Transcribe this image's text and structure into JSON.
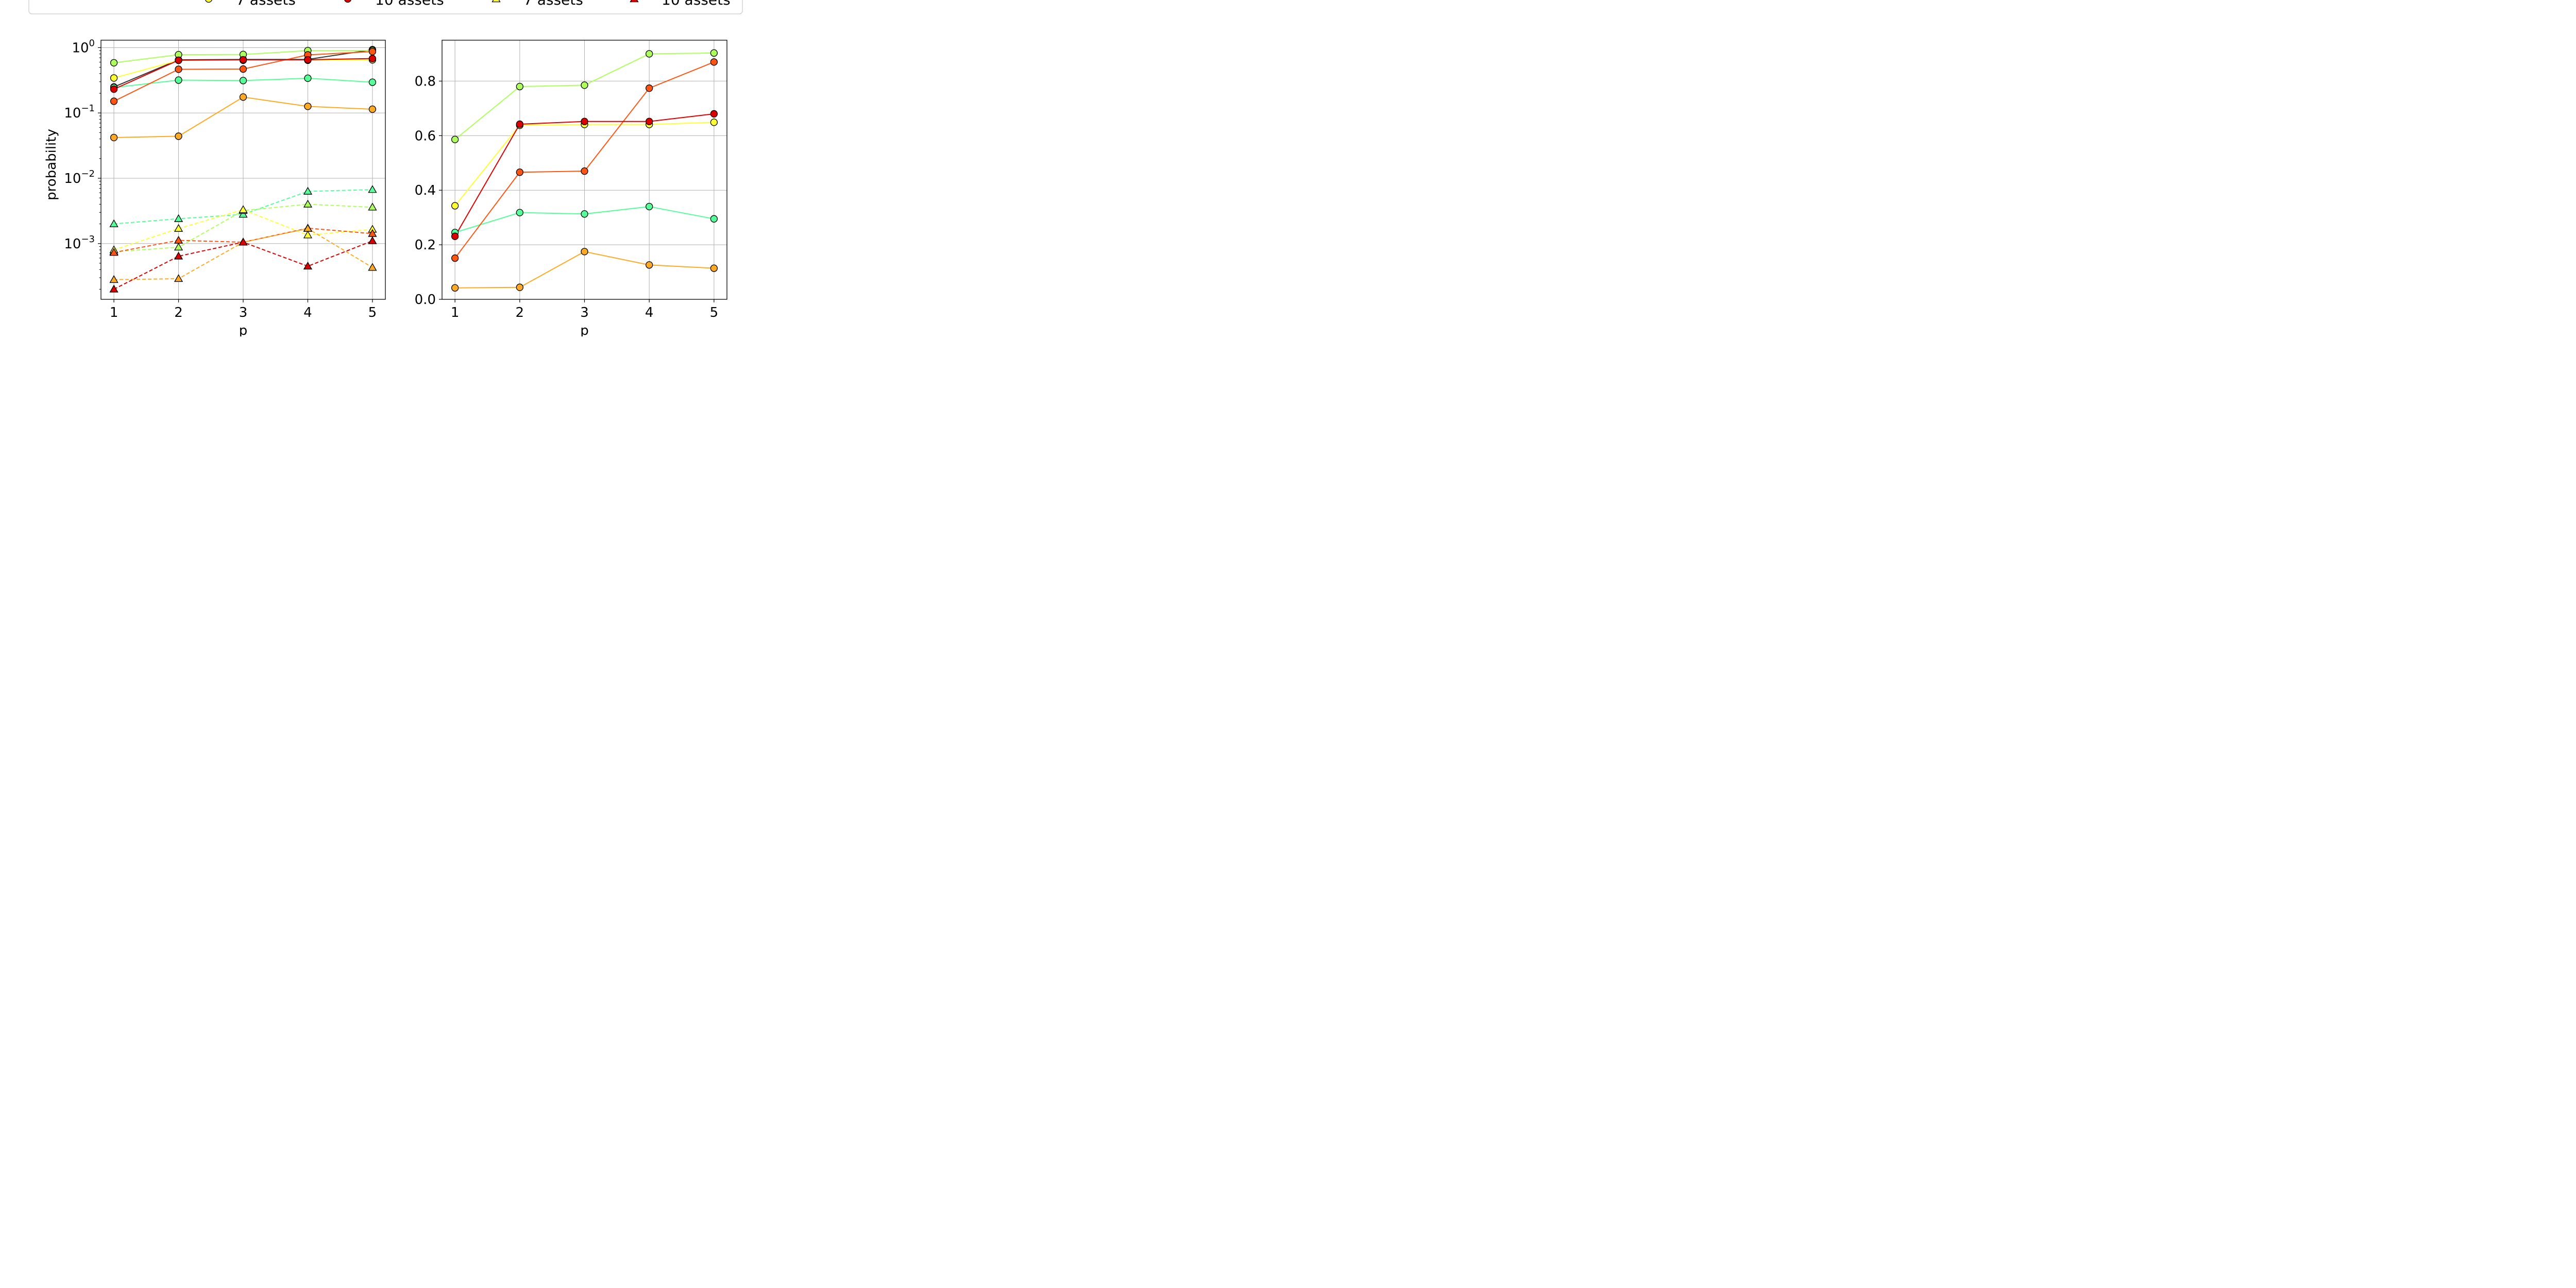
{
  "legend": {
    "items": [
      {
        "label": "7 assets",
        "color": "#ffff33",
        "marker": "circle",
        "dash": false
      },
      {
        "label": "10 assets",
        "color": "#dd0000",
        "marker": "circle",
        "dash": false
      },
      {
        "label": "7 assets",
        "color": "#ffff33",
        "marker": "triangle",
        "dash": true
      },
      {
        "label": "10 assets",
        "color": "#dd0000",
        "marker": "triangle",
        "dash": true
      }
    ]
  },
  "chart_data": [
    {
      "type": "line",
      "yscale": "log",
      "xlabel": "p",
      "ylabel": "probability",
      "x": [
        1,
        2,
        3,
        4,
        5
      ],
      "xlim": [
        0.8,
        5.2
      ],
      "ylim": [
        0.00014,
        1.3
      ],
      "x_ticks": [
        "1",
        "2",
        "3",
        "4",
        "5"
      ],
      "y_ticks": [
        {
          "value": 1,
          "base": "10",
          "exp": "0"
        },
        {
          "value": 0.1,
          "base": "10",
          "exp": "−1"
        },
        {
          "value": 0.01,
          "base": "10",
          "exp": "−2"
        },
        {
          "value": 0.001,
          "base": "10",
          "exp": "−3"
        }
      ],
      "grid": true,
      "series": [
        {
          "color": "#333333",
          "marker": "circle",
          "dash": false,
          "values": [
            0.25,
            0.65,
            0.66,
            0.66,
            0.93
          ]
        },
        {
          "color": "#adff5c",
          "marker": "circle",
          "dash": false,
          "values": [
            0.586,
            0.78,
            0.785,
            0.9,
            0.903
          ]
        },
        {
          "color": "#ffff33",
          "marker": "circle",
          "dash": false,
          "values": [
            0.343,
            0.638,
            0.641,
            0.641,
            0.649
          ]
        },
        {
          "color": "#55ff99",
          "marker": "circle",
          "dash": false,
          "values": [
            0.245,
            0.318,
            0.313,
            0.34,
            0.295
          ]
        },
        {
          "color": "#ff5511",
          "marker": "circle",
          "dash": false,
          "values": [
            0.151,
            0.466,
            0.47,
            0.774,
            0.87
          ]
        },
        {
          "color": "#dd0000",
          "marker": "circle",
          "dash": false,
          "values": [
            0.231,
            0.642,
            0.652,
            0.652,
            0.68
          ]
        },
        {
          "color": "#ffaa22",
          "marker": "circle",
          "dash": false,
          "values": [
            0.042,
            0.044,
            0.175,
            0.126,
            0.114
          ]
        },
        {
          "color": "#55ff99",
          "marker": "triangle",
          "dash": true,
          "values": [
            0.002,
            0.0024,
            0.0028,
            0.0063,
            0.0067
          ]
        },
        {
          "color": "#adff5c",
          "marker": "triangle",
          "dash": true,
          "values": [
            0.00075,
            0.00088,
            0.0032,
            0.004,
            0.0036
          ]
        },
        {
          "color": "#ffff33",
          "marker": "triangle",
          "dash": true,
          "values": [
            0.0008,
            0.0017,
            0.0033,
            0.00135,
            0.00165
          ]
        },
        {
          "color": "#ff5511",
          "marker": "triangle",
          "dash": true,
          "values": [
            0.00073,
            0.00112,
            0.00105,
            0.00172,
            0.00142
          ]
        },
        {
          "color": "#ffaa22",
          "marker": "triangle",
          "dash": true,
          "values": [
            0.00028,
            0.00029,
            0.00105,
            0.0017,
            0.00043
          ]
        },
        {
          "color": "#dd0000",
          "marker": "triangle",
          "dash": true,
          "values": [
            0.0002,
            0.00064,
            0.00105,
            0.00045,
            0.0011
          ]
        }
      ]
    },
    {
      "type": "line",
      "yscale": "linear",
      "xlabel": "p",
      "ylabel": "",
      "x": [
        1,
        2,
        3,
        4,
        5
      ],
      "xlim": [
        0.8,
        5.2
      ],
      "ylim": [
        0,
        0.95
      ],
      "x_ticks": [
        "1",
        "2",
        "3",
        "4",
        "5"
      ],
      "y_ticks": [
        {
          "value": 0,
          "label": "0.0"
        },
        {
          "value": 0.2,
          "label": "0.2"
        },
        {
          "value": 0.4,
          "label": "0.4"
        },
        {
          "value": 0.6,
          "label": "0.6"
        },
        {
          "value": 0.8,
          "label": "0.8"
        }
      ],
      "grid": true,
      "series": [
        {
          "color": "#adff5c",
          "marker": "circle",
          "dash": false,
          "values": [
            0.586,
            0.78,
            0.785,
            0.9,
            0.903
          ]
        },
        {
          "color": "#ffff33",
          "marker": "circle",
          "dash": false,
          "values": [
            0.343,
            0.638,
            0.641,
            0.641,
            0.649
          ]
        },
        {
          "color": "#55ff99",
          "marker": "circle",
          "dash": false,
          "values": [
            0.245,
            0.318,
            0.313,
            0.34,
            0.295
          ]
        },
        {
          "color": "#ff5511",
          "marker": "circle",
          "dash": false,
          "values": [
            0.151,
            0.466,
            0.47,
            0.774,
            0.87
          ]
        },
        {
          "color": "#dd0000",
          "marker": "circle",
          "dash": false,
          "values": [
            0.231,
            0.642,
            0.652,
            0.652,
            0.68
          ]
        },
        {
          "color": "#ffaa22",
          "marker": "circle",
          "dash": false,
          "values": [
            0.042,
            0.044,
            0.175,
            0.126,
            0.114
          ]
        }
      ]
    }
  ]
}
